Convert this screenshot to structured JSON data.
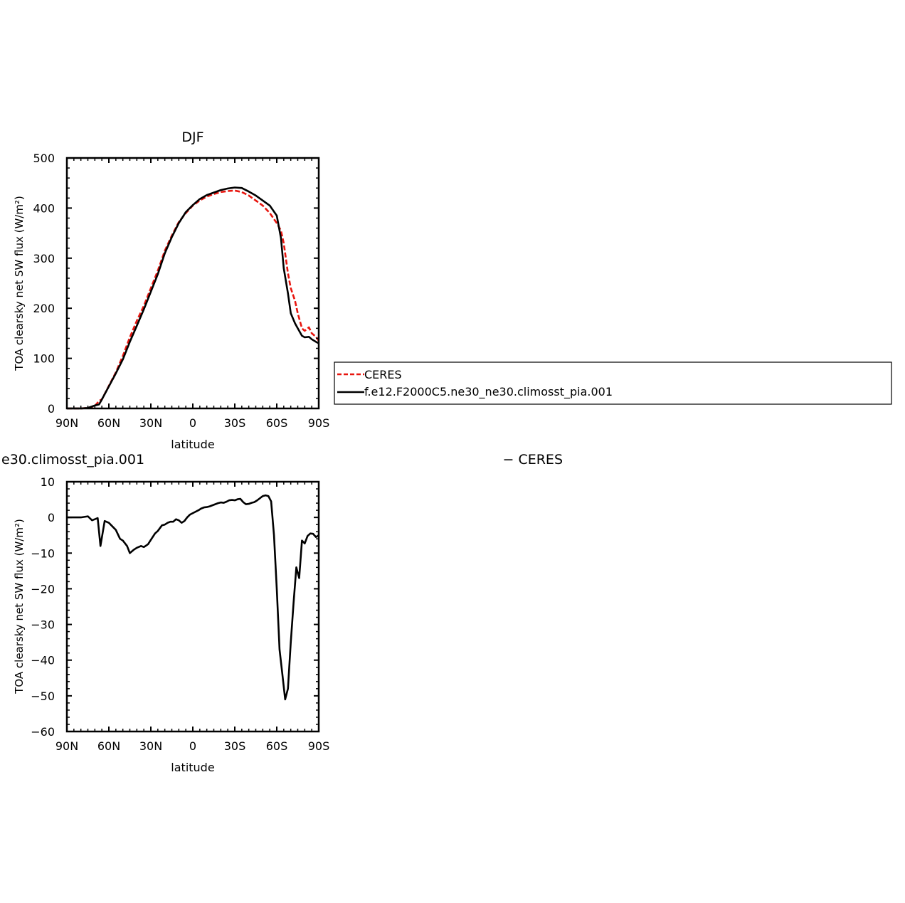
{
  "chart_data": [
    {
      "type": "line",
      "title": "DJF",
      "xlabel": "latitude",
      "ylabel": "TOA clearsky net SW flux (W/m²)",
      "xlim": [
        90,
        -90
      ],
      "ylim": [
        0,
        500
      ],
      "xticks": [
        90,
        60,
        30,
        0,
        -30,
        -60,
        -90
      ],
      "xtick_labels": [
        "90N",
        "60N",
        "30N",
        "0",
        "30S",
        "60S",
        "90S"
      ],
      "yticks": [
        0,
        100,
        200,
        300,
        400,
        500
      ],
      "ytick_labels": [
        "0",
        "100",
        "200",
        "300",
        "400",
        "500"
      ],
      "grid": false,
      "legend_position": "right",
      "series": [
        {
          "name": "CERES",
          "color": "#e8160f",
          "style": "dashed",
          "x": [
            90,
            85,
            80,
            75,
            70,
            67,
            65,
            60,
            55,
            50,
            45,
            40,
            35,
            30,
            25,
            20,
            15,
            10,
            5,
            0,
            -5,
            -10,
            -15,
            -20,
            -25,
            -30,
            -35,
            -40,
            -45,
            -50,
            -55,
            -60,
            -63,
            -65,
            -68,
            -70,
            -73,
            -75,
            -78,
            -80,
            -83,
            -85,
            -88,
            -90
          ],
          "y": [
            0,
            0,
            0,
            1,
            5,
            15,
            18,
            45,
            72,
            105,
            142,
            175,
            205,
            240,
            275,
            315,
            345,
            372,
            390,
            405,
            415,
            423,
            428,
            432,
            434,
            435,
            432,
            425,
            415,
            405,
            390,
            370,
            355,
            330,
            270,
            240,
            215,
            190,
            160,
            155,
            162,
            150,
            143,
            135
          ]
        },
        {
          "name": "f.e12.F2000C5.ne30_ne30.climosst_pia.001",
          "color": "#000000",
          "style": "solid",
          "x": [
            90,
            85,
            80,
            75,
            70,
            67,
            65,
            60,
            55,
            50,
            45,
            40,
            35,
            30,
            25,
            20,
            15,
            10,
            5,
            0,
            -5,
            -10,
            -15,
            -20,
            -25,
            -30,
            -35,
            -40,
            -45,
            -50,
            -55,
            -60,
            -63,
            -65,
            -68,
            -70,
            -73,
            -75,
            -78,
            -80,
            -83,
            -85,
            -88,
            -90
          ],
          "y": [
            0,
            0,
            0,
            1,
            6,
            8,
            18,
            44,
            70,
            98,
            133,
            165,
            198,
            233,
            268,
            310,
            342,
            370,
            392,
            406,
            418,
            426,
            431,
            436,
            439,
            441,
            440,
            433,
            425,
            415,
            405,
            385,
            340,
            280,
            230,
            190,
            170,
            160,
            145,
            142,
            143,
            138,
            133,
            130
          ]
        }
      ]
    },
    {
      "type": "line",
      "title": "e30.climosst_pia.001",
      "right_title": "− CERES",
      "xlabel": "latitude",
      "ylabel": "TOA clearsky net SW flux (W/m²)",
      "xlim": [
        90,
        -90
      ],
      "ylim": [
        -60,
        10
      ],
      "xticks": [
        90,
        60,
        30,
        0,
        -30,
        -60,
        -90
      ],
      "xtick_labels": [
        "90N",
        "60N",
        "30N",
        "0",
        "30S",
        "60S",
        "90S"
      ],
      "yticks": [
        10,
        0,
        -10,
        -20,
        -30,
        -40,
        -50,
        -60
      ],
      "ytick_labels": [
        "10",
        "0",
        "−10",
        "−20",
        "−30",
        "−40",
        "−50",
        "−60"
      ],
      "grid": false,
      "series": [
        {
          "color": "#000000",
          "style": "solid",
          "x": [
            90,
            85,
            80,
            75,
            72,
            70,
            68,
            66,
            63,
            60,
            55,
            52,
            50,
            47,
            45,
            42,
            40,
            37,
            35,
            32,
            30,
            27,
            25,
            22,
            20,
            18,
            16,
            14,
            12,
            10,
            8,
            6,
            4,
            2,
            0,
            -2,
            -4,
            -6,
            -8,
            -10,
            -12,
            -14,
            -16,
            -18,
            -20,
            -22,
            -24,
            -26,
            -28,
            -30,
            -32,
            -34,
            -36,
            -38,
            -40,
            -42,
            -44,
            -46,
            -48,
            -50,
            -52,
            -54,
            -56,
            -58,
            -60,
            -62,
            -64,
            -66,
            -68,
            -70,
            -72,
            -74,
            -76,
            -78,
            -80,
            -82,
            -84,
            -86,
            -88,
            -90
          ],
          "y": [
            0,
            0,
            0,
            0.3,
            -0.8,
            -0.5,
            -0.2,
            -8,
            -1,
            -1.5,
            -3.5,
            -6,
            -6.5,
            -8,
            -10,
            -9,
            -8.5,
            -8,
            -8.3,
            -7.5,
            -6.3,
            -4.5,
            -3.8,
            -2.2,
            -2,
            -1.5,
            -1.2,
            -1.2,
            -0.5,
            -0.8,
            -1.5,
            -1,
            0,
            0.8,
            1.2,
            1.6,
            2,
            2.5,
            2.8,
            2.9,
            3.1,
            3.4,
            3.7,
            4,
            4.2,
            4.1,
            4.4,
            4.8,
            4.9,
            4.8,
            5.1,
            5.2,
            4.3,
            3.7,
            3.8,
            4.1,
            4.3,
            4.8,
            5.4,
            6,
            6.2,
            6,
            4.5,
            -5,
            -20,
            -37,
            -44,
            -51,
            -48,
            -35,
            -24,
            -14,
            -17,
            -6.5,
            -7.3,
            -5.2,
            -4.5,
            -4.6,
            -5.5,
            -5
          ]
        }
      ]
    }
  ],
  "legend": {
    "entries": [
      "CERES",
      "f.e12.F2000C5.ne30_ne30.climosst_pia.001"
    ]
  }
}
